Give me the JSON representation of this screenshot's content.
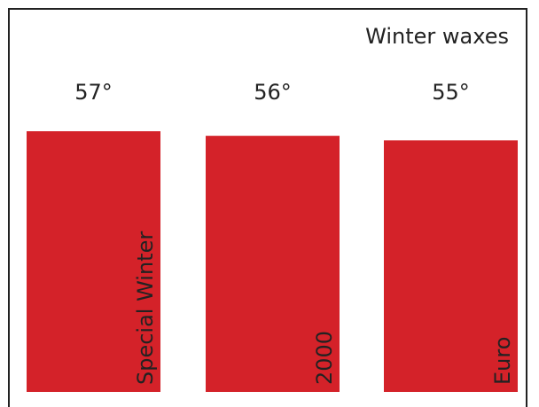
{
  "chart_data": {
    "type": "bar",
    "title": "Winter waxes",
    "categories": [
      "Special Winter",
      "2000",
      "Euro"
    ],
    "values": [
      57,
      56,
      55
    ],
    "value_labels": [
      "57°",
      "56°",
      "55°"
    ],
    "ylim": [
      0,
      57
    ],
    "grid": false,
    "legend": "none",
    "bar_color": "#d42229"
  }
}
